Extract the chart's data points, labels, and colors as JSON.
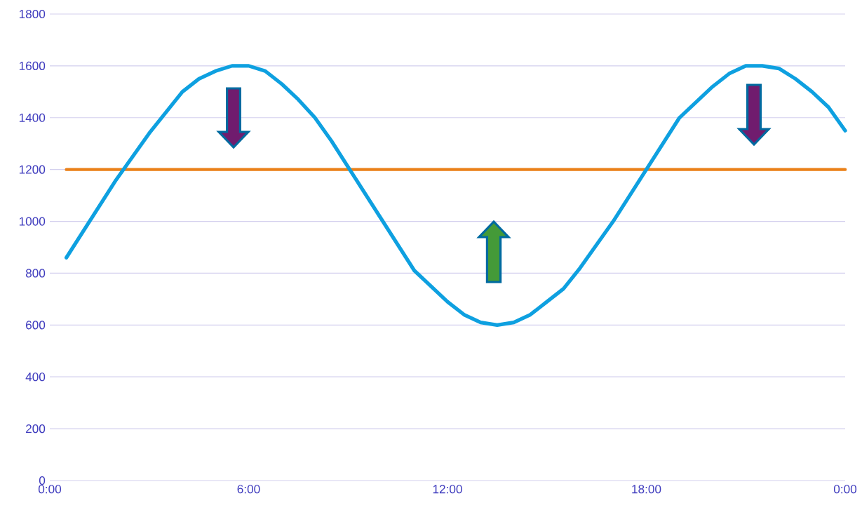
{
  "chart_data": {
    "type": "line",
    "x": [
      0.5,
      1,
      1.5,
      2,
      2.5,
      3,
      3.5,
      4,
      4.5,
      5,
      5.5,
      6,
      6.5,
      7,
      7.5,
      8,
      8.5,
      9,
      9.5,
      10,
      10.5,
      11,
      11.5,
      12,
      12.5,
      13,
      13.5,
      14,
      14.5,
      15,
      15.5,
      16,
      16.5,
      17,
      17.5,
      18,
      18.5,
      19,
      19.5,
      20,
      20.5,
      21,
      21.5,
      22,
      22.5,
      23,
      23.5,
      24
    ],
    "series": [
      {
        "color": "#0ea0e0",
        "values": [
          860,
          960,
          1060,
          1160,
          1250,
          1340,
          1420,
          1500,
          1550,
          1580,
          1600,
          1600,
          1580,
          1530,
          1470,
          1400,
          1310,
          1210,
          1110,
          1010,
          910,
          810,
          750,
          690,
          640,
          610,
          600,
          610,
          640,
          690,
          740,
          820,
          910,
          1000,
          1100,
          1200,
          1300,
          1400,
          1460,
          1520,
          1570,
          1600,
          1600,
          1590,
          1550,
          1500,
          1440,
          1350
        ]
      }
    ],
    "ref_lines": [
      {
        "axis": "y",
        "value": 1200,
        "color": "#ea8018"
      }
    ],
    "xlim": [
      0,
      24
    ],
    "xticks": [
      {
        "value": 0,
        "label": "0:00"
      },
      {
        "value": 6,
        "label": "6:00"
      },
      {
        "value": 12,
        "label": "12:00"
      },
      {
        "value": 18,
        "label": "18:00"
      },
      {
        "value": 24,
        "label": "0:00"
      }
    ],
    "ylim": [
      0,
      1800
    ],
    "yticks": [
      0,
      200,
      400,
      600,
      800,
      1000,
      1200,
      1400,
      1600,
      1800
    ],
    "grid": "y",
    "marker": "none",
    "line_style": "solid",
    "legend": false
  }
}
